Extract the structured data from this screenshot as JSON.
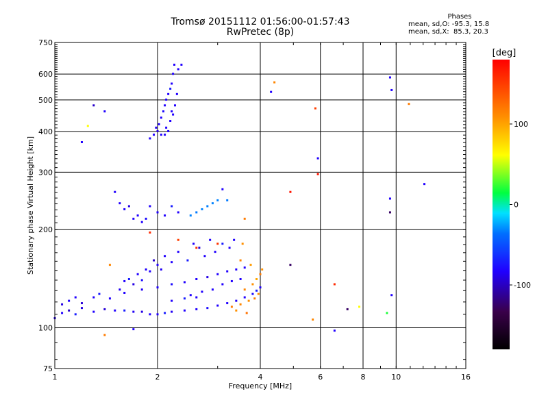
{
  "chart_data": {
    "type": "scatter",
    "title": "Tromsø 20151112 01:56:00-01:57:43",
    "subtitle": "RwPretec (8p)",
    "xlabel": "Frequency [MHz]",
    "ylabel": "Stationary phase Virtual Height [km]",
    "x_scale": "log",
    "y_scale": "log",
    "xlim": [
      1,
      16
    ],
    "ylim": [
      75,
      750
    ],
    "x_ticks": [
      1,
      2,
      4,
      6,
      8,
      10,
      16
    ],
    "x_tick_labels": [
      "1",
      "2",
      "4",
      "6",
      "8",
      "10",
      "16"
    ],
    "y_ticks": [
      75,
      100,
      200,
      300,
      400,
      500,
      600,
      750
    ],
    "y_tick_labels": [
      "75",
      "100",
      "200",
      "300",
      "400",
      "500",
      "600",
      "750"
    ],
    "grid": true,
    "phase_stats": {
      "title": "Phases",
      "line_o": "mean, sd,O: -95.3, 15.8",
      "line_x": "mean, sd,X:  85.3, 20.3"
    },
    "colorbar": {
      "label": "[deg]",
      "range": [
        -180,
        180
      ],
      "ticks": [
        100,
        0,
        -100
      ],
      "tick_labels": [
        "100",
        "0",
        "-100"
      ]
    },
    "series": [
      {
        "points": [
          [
            1.0,
            107,
            -105
          ],
          [
            1.05,
            111,
            -100
          ],
          [
            1.1,
            113,
            -110
          ],
          [
            1.15,
            110,
            -95
          ],
          [
            1.2,
            115,
            -105
          ],
          [
            1.3,
            112,
            -100
          ],
          [
            1.4,
            114,
            -108
          ],
          [
            1.5,
            113,
            -100
          ],
          [
            1.6,
            113,
            -95
          ],
          [
            1.7,
            112,
            -102
          ],
          [
            1.8,
            112,
            -105
          ],
          [
            1.9,
            110,
            -100
          ],
          [
            2.0,
            110,
            -100
          ],
          [
            2.1,
            111,
            -95
          ],
          [
            2.2,
            112,
            -102
          ],
          [
            2.4,
            113,
            -100
          ],
          [
            2.6,
            114,
            -100
          ],
          [
            2.8,
            115,
            -98
          ],
          [
            3.0,
            117,
            -100
          ],
          [
            3.2,
            119,
            -100
          ],
          [
            3.4,
            121,
            -102
          ],
          [
            3.6,
            124,
            -100
          ],
          [
            3.8,
            127,
            -98
          ],
          [
            3.9,
            130,
            -95
          ],
          [
            4.0,
            133,
            -100
          ],
          [
            1.05,
            118,
            -105
          ],
          [
            1.1,
            121,
            -100
          ],
          [
            1.15,
            124,
            -100
          ],
          [
            1.2,
            119,
            -108
          ],
          [
            1.3,
            124,
            -100
          ],
          [
            1.35,
            127,
            -95
          ],
          [
            1.45,
            123,
            -100
          ],
          [
            1.55,
            131,
            -102
          ],
          [
            1.6,
            128,
            -100
          ],
          [
            1.65,
            141,
            -95
          ],
          [
            1.7,
            136,
            -105
          ],
          [
            1.75,
            146,
            -100
          ],
          [
            1.8,
            140,
            -98
          ],
          [
            1.85,
            151,
            -100
          ],
          [
            1.9,
            149,
            -100
          ],
          [
            1.95,
            161,
            -110
          ],
          [
            2.0,
            156,
            -100
          ],
          [
            2.05,
            151,
            -102
          ],
          [
            2.1,
            166,
            -100
          ],
          [
            2.2,
            159,
            -100
          ],
          [
            2.3,
            171,
            -100
          ],
          [
            2.45,
            161,
            -95
          ],
          [
            2.55,
            181,
            -100
          ],
          [
            2.65,
            176,
            -108
          ],
          [
            2.75,
            166,
            -100
          ],
          [
            2.85,
            186,
            -100
          ],
          [
            2.95,
            171,
            -100
          ],
          [
            3.1,
            181,
            -95
          ],
          [
            3.25,
            176,
            -100
          ],
          [
            3.35,
            186,
            -100
          ],
          [
            1.6,
            139,
            -100
          ],
          [
            1.8,
            131,
            -102
          ],
          [
            2.0,
            133,
            -100
          ],
          [
            2.2,
            136,
            -98
          ],
          [
            2.4,
            138,
            -100
          ],
          [
            2.6,
            141,
            -100
          ],
          [
            2.8,
            143,
            -105
          ],
          [
            3.0,
            146,
            -100
          ],
          [
            3.2,
            149,
            -100
          ],
          [
            3.4,
            151,
            -100
          ],
          [
            3.6,
            153,
            -100
          ],
          [
            2.5,
            126,
            -100
          ],
          [
            2.7,
            129,
            -100
          ],
          [
            2.9,
            131,
            -100
          ],
          [
            3.1,
            136,
            -100
          ],
          [
            3.3,
            139,
            -100
          ],
          [
            3.5,
            141,
            -100
          ],
          [
            2.2,
            121,
            -100
          ],
          [
            2.4,
            123,
            -95
          ],
          [
            2.6,
            124,
            -100
          ],
          [
            1.55,
            241,
            -100
          ],
          [
            1.6,
            231,
            -100
          ],
          [
            1.65,
            236,
            -105
          ],
          [
            1.7,
            216,
            -100
          ],
          [
            1.75,
            221,
            -100
          ],
          [
            1.8,
            211,
            -100
          ],
          [
            1.85,
            216,
            -98
          ],
          [
            1.9,
            236,
            -100
          ],
          [
            2.0,
            226,
            -100
          ],
          [
            2.1,
            221,
            -100
          ],
          [
            2.2,
            236,
            -95
          ],
          [
            2.3,
            226,
            -100
          ],
          [
            2.5,
            221,
            -70
          ],
          [
            2.6,
            226,
            -75
          ],
          [
            2.7,
            231,
            -70
          ],
          [
            2.8,
            236,
            -72
          ],
          [
            2.9,
            241,
            -70
          ],
          [
            3.0,
            246,
            -70
          ],
          [
            3.2,
            246,
            -75
          ],
          [
            1.9,
            381,
            -100
          ],
          [
            1.95,
            391,
            -100
          ],
          [
            2.0,
            401,
            -105
          ],
          [
            2.02,
            421,
            -100
          ],
          [
            2.05,
            441,
            -100
          ],
          [
            2.08,
            461,
            -98
          ],
          [
            2.1,
            481,
            -100
          ],
          [
            2.12,
            501,
            -100
          ],
          [
            2.15,
            521,
            -100
          ],
          [
            2.18,
            541,
            -95
          ],
          [
            2.2,
            561,
            -100
          ],
          [
            2.22,
            601,
            -100
          ],
          [
            2.24,
            641,
            -100
          ],
          [
            2.3,
            621,
            -100
          ],
          [
            2.2,
            461,
            -100
          ],
          [
            2.25,
            481,
            -100
          ],
          [
            2.18,
            431,
            -100
          ],
          [
            2.12,
            411,
            -100
          ],
          [
            1.98,
            411,
            -102
          ],
          [
            2.05,
            391,
            -100
          ],
          [
            2.1,
            391,
            -100
          ],
          [
            2.15,
            401,
            -100
          ],
          [
            2.22,
            451,
            -100
          ],
          [
            2.28,
            521,
            -100
          ],
          [
            2.35,
            641,
            -100
          ],
          [
            1.3,
            481,
            -110
          ],
          [
            1.4,
            461,
            -100
          ],
          [
            1.2,
            371,
            -100
          ],
          [
            1.5,
            261,
            -100
          ],
          [
            3.1,
            266,
            -100
          ],
          [
            5.9,
            331,
            -100
          ],
          [
            9.6,
            586,
            -100
          ],
          [
            9.7,
            536,
            -100
          ],
          [
            12.1,
            276,
            -100
          ],
          [
            9.6,
            249,
            -100
          ],
          [
            9.6,
            226,
            -130
          ],
          [
            9.7,
            126,
            -100
          ],
          [
            4.9,
            156,
            -130
          ],
          [
            4.3,
            529,
            -100
          ],
          [
            6.6,
            98,
            -100
          ],
          [
            7.2,
            114,
            -130
          ],
          [
            1.7,
            99,
            -100
          ],
          [
            3.3,
            116,
            120
          ],
          [
            3.5,
            118,
            115
          ],
          [
            3.7,
            121,
            110
          ],
          [
            3.85,
            123,
            120
          ],
          [
            3.95,
            127,
            110
          ],
          [
            3.6,
            131,
            115
          ],
          [
            3.8,
            136,
            110
          ],
          [
            3.9,
            141,
            100
          ],
          [
            4.0,
            146,
            120
          ],
          [
            4.05,
            151,
            110
          ],
          [
            3.75,
            156,
            105
          ],
          [
            3.5,
            161,
            115
          ],
          [
            3.6,
            216,
            120
          ],
          [
            3.55,
            181,
            110
          ],
          [
            3.65,
            111,
            125
          ],
          [
            3.4,
            113,
            110
          ],
          [
            1.4,
            95,
            120
          ],
          [
            1.45,
            156,
            115
          ],
          [
            1.25,
            416,
            60
          ],
          [
            4.4,
            566,
            115
          ],
          [
            10.9,
            486,
            120
          ],
          [
            5.7,
            106,
            115
          ],
          [
            5.8,
            471,
            150
          ],
          [
            5.9,
            296,
            170
          ],
          [
            4.9,
            261,
            170
          ],
          [
            2.6,
            176,
            160
          ],
          [
            3.0,
            181,
            155
          ],
          [
            2.3,
            186,
            150
          ],
          [
            1.9,
            196,
            160
          ],
          [
            7.8,
            116,
            60
          ],
          [
            9.4,
            111,
            20
          ],
          [
            6.6,
            136,
            160
          ]
        ],
        "point_format": [
          "frequency_MHz",
          "height_km",
          "phase_deg"
        ]
      }
    ]
  }
}
